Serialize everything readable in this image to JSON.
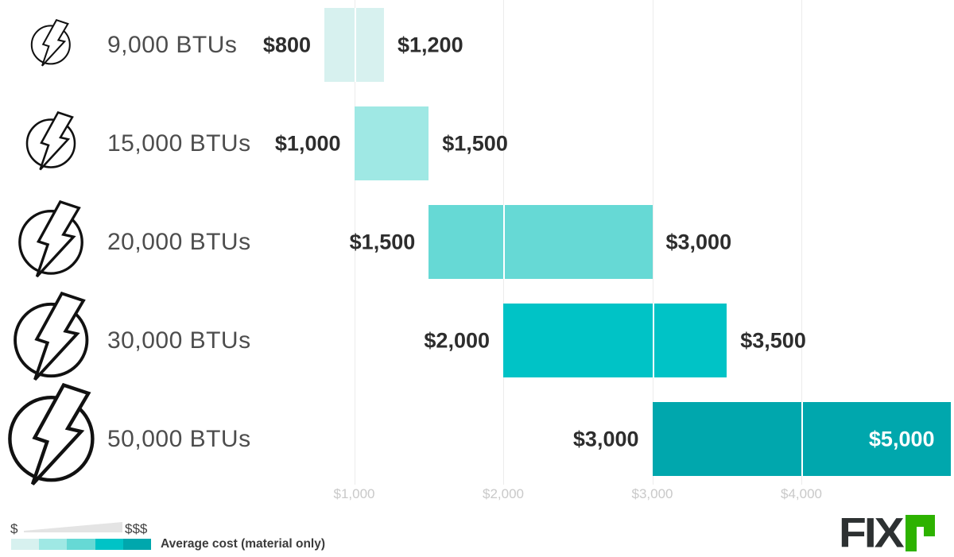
{
  "chart_data": {
    "type": "bar",
    "subtype": "horizontal-range-bars",
    "title": "",
    "xlabel": "",
    "ylabel": "",
    "grid": "vertical-only",
    "legend_position": "bottom-left",
    "categories": [
      "9,000 BTUs",
      "15,000 BTUs",
      "20,000 BTUs",
      "30,000 BTUs",
      "50,000 BTUs"
    ],
    "series": [
      {
        "category": "9,000 BTUs",
        "min": 800,
        "max": 1200,
        "min_label": "$800",
        "max_label": "$1,200",
        "color": "#d7f1ef",
        "icon": "lightning-bolt-icon",
        "icon_size": 48,
        "max_label_inside": false
      },
      {
        "category": "15,000 BTUs",
        "min": 1000,
        "max": 1500,
        "min_label": "$1,000",
        "max_label": "$1,500",
        "color": "#9fe8e4",
        "icon": "lightning-bolt-icon",
        "icon_size": 60,
        "max_label_inside": false
      },
      {
        "category": "20,000 BTUs",
        "min": 1500,
        "max": 3000,
        "min_label": "$1,500",
        "max_label": "$3,000",
        "color": "#66d9d5",
        "icon": "lightning-bolt-icon",
        "icon_size": 78,
        "max_label_inside": false
      },
      {
        "category": "30,000 BTUs",
        "min": 2000,
        "max": 3500,
        "min_label": "$2,000",
        "max_label": "$3,500",
        "color": "#00c3c6",
        "icon": "lightning-bolt-icon",
        "icon_size": 90,
        "max_label_inside": false
      },
      {
        "category": "50,000 BTUs",
        "min": 3000,
        "max": 5000,
        "min_label": "$3,000",
        "max_label": "$5,000",
        "color": "#00a7ad",
        "icon": "lightning-bolt-icon",
        "icon_size": 104,
        "max_label_inside": true
      }
    ],
    "x_ticks": [
      {
        "value": 1000,
        "label": "$1,000"
      },
      {
        "value": 2000,
        "label": "$2,000"
      },
      {
        "value": 3000,
        "label": "$3,000"
      },
      {
        "value": 4000,
        "label": "$4,000"
      }
    ],
    "x_axis_range": [
      0,
      5000
    ]
  },
  "legend": {
    "scale_min": "$",
    "scale_max": "$$$",
    "label": "Average cost (material only)",
    "swatches": [
      "#d7f1ef",
      "#9fe8e4",
      "#66d9d5",
      "#00c3c6",
      "#00a7ad"
    ]
  },
  "logo": {
    "text": "FIX",
    "accent_letter": "r",
    "text_color": "#2d3132",
    "accent_color": "#2db200"
  },
  "colors": {
    "grid": "#ececec",
    "tick_label": "#c9c9c9",
    "category_label": "#4d4d4d",
    "price_label": "#2d2d2d",
    "price_label_inverse": "#ffffff",
    "icon_stroke": "#111111",
    "wedge": "#e4e4e4",
    "legend_label": "#3b3b3b"
  }
}
